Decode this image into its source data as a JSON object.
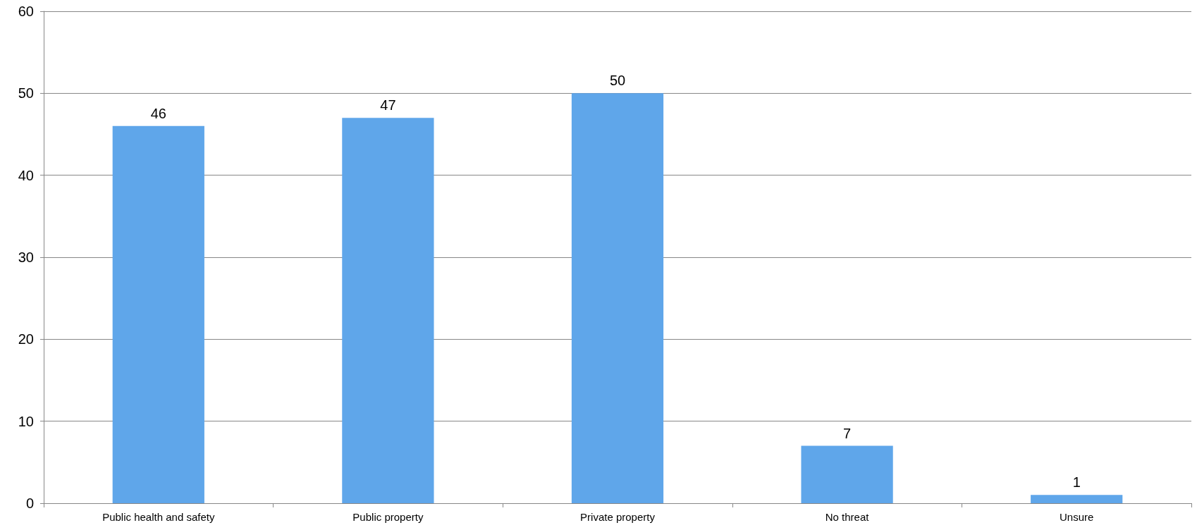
{
  "chart_data": {
    "type": "bar",
    "categories": [
      "Public health and safety",
      "Public property",
      "Private property",
      "No threat",
      "Unsure"
    ],
    "values": [
      46,
      47,
      50,
      7,
      1
    ],
    "color": "#5fa6ea",
    "ylim": [
      0,
      60
    ],
    "yticks": [
      0,
      10,
      20,
      30,
      40,
      50,
      60
    ],
    "grid": "y",
    "data_labels": true
  }
}
